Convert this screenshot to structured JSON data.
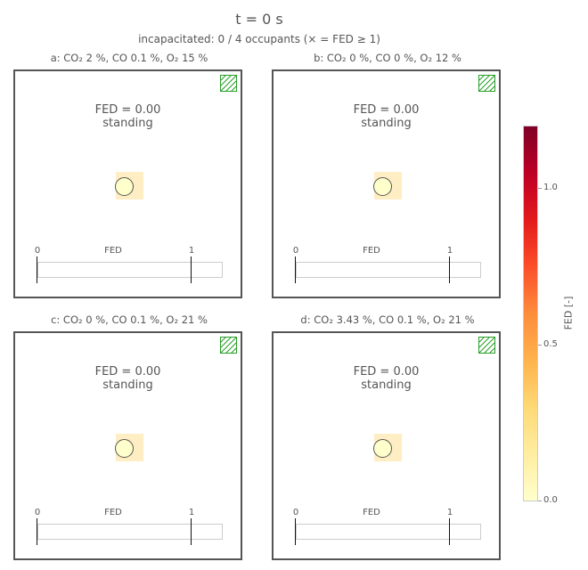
{
  "title": "t = 0 s",
  "subtitle": "incapacitated: 0 / 4 occupants (× = FED ≥ 1)",
  "panels": [
    {
      "title": "a: CO₂ 2 %, CO 0.1 %, O₂ 15 %",
      "fed_line": "FED = 0.00",
      "state": "standing",
      "bar_label": "FED",
      "tick0": "0",
      "tick1": "1",
      "fed": 0.0
    },
    {
      "title": "b: CO₂ 0 %, CO 0 %, O₂ 12 %",
      "fed_line": "FED = 0.00",
      "state": "standing",
      "bar_label": "FED",
      "tick0": "0",
      "tick1": "1",
      "fed": 0.0
    },
    {
      "title": "c: CO₂ 0 %, CO 0.1 %, O₂ 21 %",
      "fed_line": "FED = 0.00",
      "state": "standing",
      "bar_label": "FED",
      "tick0": "0",
      "tick1": "1",
      "fed": 0.0
    },
    {
      "title": "d: CO₂ 3.43 %, CO 0.1 %, O₂ 21 %",
      "fed_line": "FED = 0.00",
      "state": "standing",
      "bar_label": "FED",
      "tick0": "0",
      "tick1": "1",
      "fed": 0.0
    }
  ],
  "colorbar": {
    "label": "FED [-]",
    "ticks": [
      "0.0",
      "0.5",
      "1.0"
    ],
    "range": [
      0,
      1.2
    ],
    "colormap": [
      "#ffffcc",
      "#ffeda0",
      "#fed976",
      "#feb24c",
      "#fd8d3c",
      "#fc4e2a",
      "#e31a1c",
      "#bd0026",
      "#800026"
    ]
  },
  "colors": {
    "hatch": "#2aa02a",
    "occupant": "#ffffcc",
    "occupant_zone": "#ffeec4",
    "frame": "#555555"
  },
  "chart_data": {
    "type": "heatmap",
    "title": "t = 0 s",
    "categories": [
      "a",
      "b",
      "c",
      "d"
    ],
    "series": [
      {
        "name": "FED",
        "values": [
          0.0,
          0.0,
          0.0,
          0.0
        ]
      }
    ],
    "states": [
      "standing",
      "standing",
      "standing",
      "standing"
    ],
    "incapacitated": 0,
    "occupants": 4,
    "fed_bar_range": [
      0,
      1
    ],
    "colorbar_range": [
      0,
      1.2
    ]
  }
}
